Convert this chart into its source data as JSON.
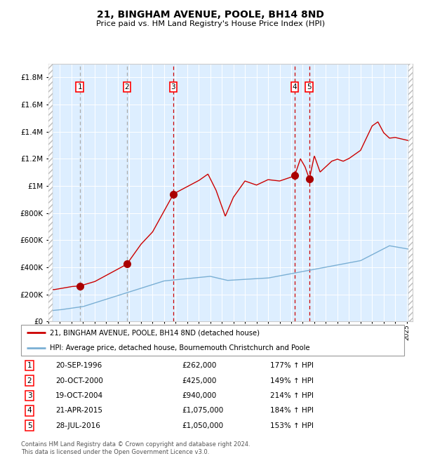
{
  "title": "21, BINGHAM AVENUE, POOLE, BH14 8ND",
  "subtitle": "Price paid vs. HM Land Registry's House Price Index (HPI)",
  "footer1": "Contains HM Land Registry data © Crown copyright and database right 2024.",
  "footer2": "This data is licensed under the Open Government Licence v3.0.",
  "legend_red": "21, BINGHAM AVENUE, POOLE, BH14 8ND (detached house)",
  "legend_blue": "HPI: Average price, detached house, Bournemouth Christchurch and Poole",
  "purchases": [
    {
      "num": 1,
      "date": "20-SEP-1996",
      "year": 1996.72,
      "price": 262000,
      "hpi_pct": "177% ↑ HPI"
    },
    {
      "num": 2,
      "date": "20-OCT-2000",
      "year": 2000.8,
      "price": 425000,
      "hpi_pct": "149% ↑ HPI"
    },
    {
      "num": 3,
      "date": "19-OCT-2004",
      "year": 2004.8,
      "price": 940000,
      "hpi_pct": "214% ↑ HPI"
    },
    {
      "num": 4,
      "date": "21-APR-2015",
      "year": 2015.3,
      "price": 1075000,
      "hpi_pct": "184% ↑ HPI"
    },
    {
      "num": 5,
      "date": "28-JUL-2016",
      "year": 2016.57,
      "price": 1050000,
      "hpi_pct": "153% ↑ HPI"
    }
  ],
  "red_line_color": "#cc0000",
  "blue_line_color": "#7aafd4",
  "dot_color": "#aa0000",
  "plot_bg": "#ddeeff",
  "ylim_max": 1900000,
  "xlim_start": 1994.0,
  "xlim_end": 2025.5
}
